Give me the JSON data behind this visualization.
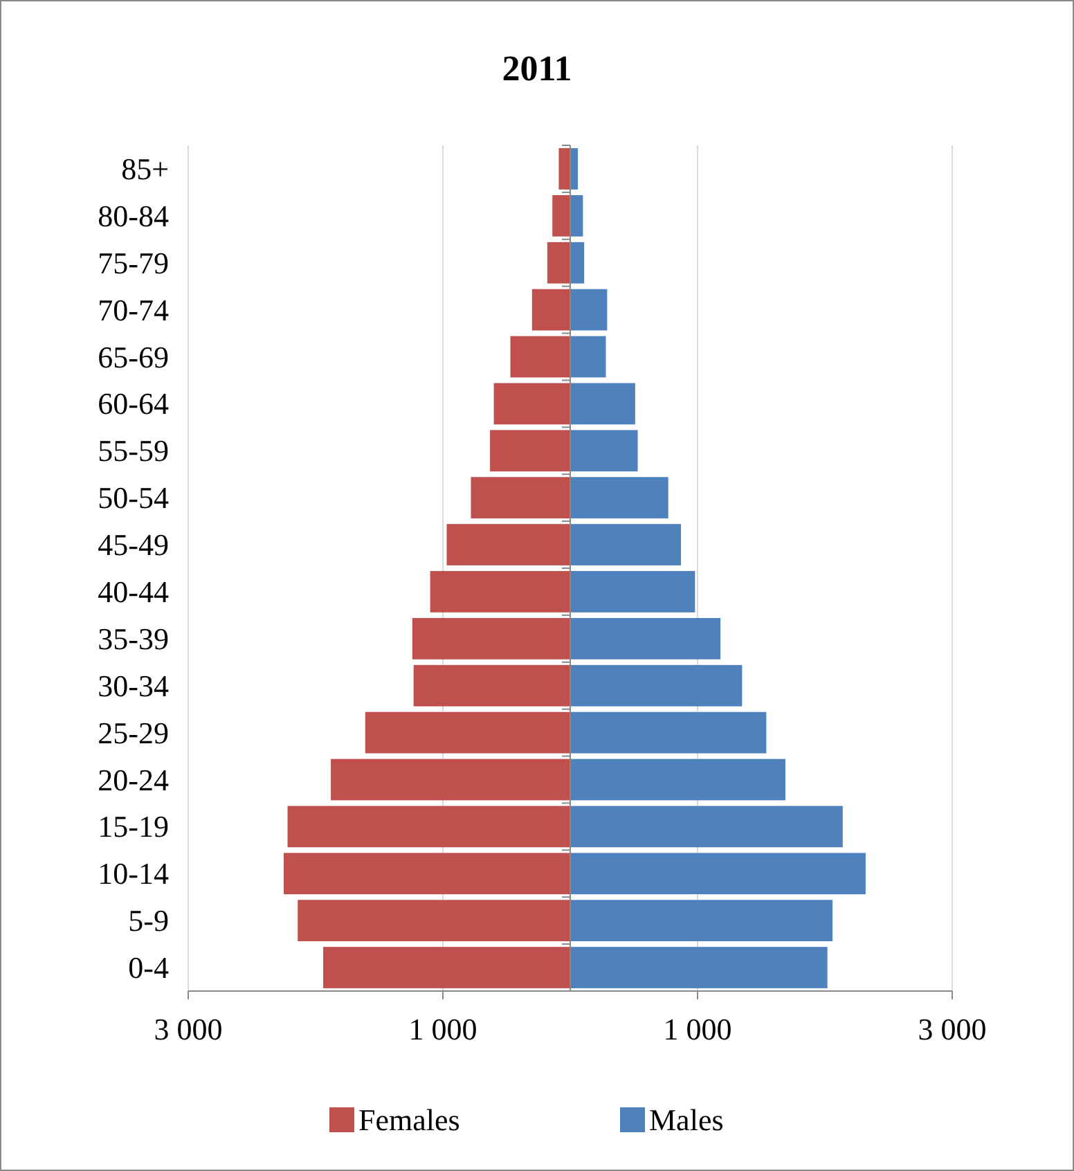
{
  "chart_data": {
    "type": "bar",
    "title": "2011",
    "orientation": "horizontal",
    "stacked": true,
    "categories": [
      "85+",
      "80-84",
      "75-79",
      "70-74",
      "65-69",
      "60-64",
      "55-59",
      "50-54",
      "45-49",
      "40-44",
      "35-39",
      "30-34",
      "25-29",
      "20-24",
      "15-19",
      "10-14",
      "5-9",
      "0-4"
    ],
    "series": [
      {
        "name": "Females",
        "color": "#c0504d",
        "values": [
          -90,
          -140,
          -180,
          -300,
          -470,
          -600,
          -630,
          -780,
          -970,
          -1100,
          -1240,
          -1230,
          -1610,
          -1880,
          -2220,
          -2250,
          -2140,
          -1940
        ]
      },
      {
        "name": "Males",
        "color": "#4f81bd",
        "values": [
          60,
          100,
          110,
          290,
          280,
          510,
          530,
          770,
          870,
          980,
          1180,
          1350,
          1540,
          1690,
          2140,
          2320,
          2060,
          2020
        ]
      }
    ],
    "xlim": [
      -3000,
      3000
    ],
    "xticks": [
      {
        "value": -3000,
        "label": "3 000"
      },
      {
        "value": -1000,
        "label": "1 000"
      },
      {
        "value": 1000,
        "label": "1 000"
      },
      {
        "value": 3000,
        "label": "3 000"
      }
    ],
    "grid": "x",
    "legend": "bottom"
  }
}
